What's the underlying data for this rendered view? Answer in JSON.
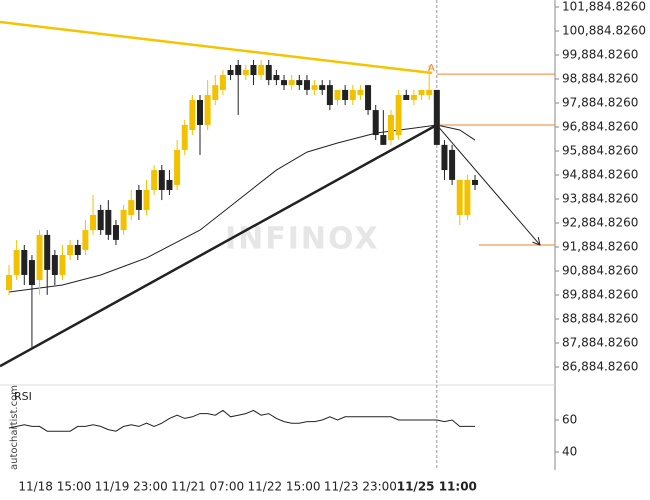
{
  "chart_data": [
    {
      "type": "candlestick",
      "categories": [
        null,
        null,
        null,
        null,
        null,
        null,
        "11/18 15:00",
        null,
        null,
        null,
        null,
        null,
        null,
        null,
        null,
        null,
        "11/19 23:00",
        null,
        null,
        null,
        null,
        null,
        null,
        null,
        null,
        null,
        "11/21 07:00",
        null,
        null,
        null,
        null,
        null,
        null,
        null,
        null,
        null,
        "11/22 15:00",
        null,
        null,
        null,
        null,
        null,
        null,
        null,
        null,
        null,
        "11/23 23:00",
        null,
        null,
        null,
        null,
        null,
        null,
        null,
        null,
        null,
        "11/25 11:00",
        null,
        null,
        null,
        null,
        null
      ],
      "open": [
        90090,
        90720,
        91760,
        91340,
        90510,
        92390,
        91550,
        90720,
        91550,
        91970,
        91760,
        92590,
        93430,
        93430,
        92800,
        92590,
        93220,
        94260,
        93430,
        94260,
        95090,
        94680,
        94470,
        95930,
        96760,
        98010,
        96970,
        98010,
        98430,
        99260,
        99470,
        99050,
        99470,
        99050,
        99470,
        99050,
        98840,
        98630,
        98840,
        98840,
        98430,
        98630,
        98630,
        98010,
        98430,
        98010,
        98220,
        98630,
        97590,
        96550,
        96340,
        96550,
        98220,
        98010,
        98220,
        98220,
        98430,
        96140,
        95930,
        93220,
        93220,
        94680
      ],
      "high": [
        91140,
        92180,
        91970,
        91550,
        92590,
        92590,
        91760,
        91970,
        92180,
        92180,
        93010,
        94050,
        93640,
        93840,
        93010,
        93640,
        94260,
        94470,
        94680,
        95300,
        95300,
        95090,
        96340,
        97180,
        98220,
        98220,
        98840,
        99050,
        99260,
        99470,
        99680,
        99470,
        99680,
        99680,
        99680,
        99260,
        99050,
        99050,
        99050,
        99050,
        98840,
        98840,
        98840,
        98430,
        98630,
        98630,
        98630,
        98630,
        97800,
        97590,
        97590,
        98430,
        98430,
        98430,
        98430,
        99470,
        98430,
        96340,
        96140,
        94680,
        94890,
        94890
      ],
      "low": [
        89890,
        90510,
        90300,
        87680,
        89890,
        89890,
        90300,
        90510,
        91340,
        91340,
        91550,
        92390,
        92390,
        92180,
        91970,
        92390,
        93010,
        93010,
        93220,
        94050,
        93840,
        94050,
        94260,
        95720,
        96550,
        95720,
        96760,
        97800,
        98220,
        98840,
        97390,
        98840,
        98630,
        98840,
        98630,
        98630,
        98430,
        98430,
        98430,
        98220,
        98220,
        98220,
        97590,
        97800,
        97800,
        97800,
        98010,
        97390,
        96340,
        96140,
        96140,
        96340,
        98010,
        97800,
        98010,
        98010,
        96140,
        94680,
        94470,
        92800,
        93010,
        94260
      ],
      "close": [
        90720,
        91760,
        90720,
        90300,
        92390,
        90930,
        90720,
        91550,
        91970,
        91550,
        92590,
        93220,
        92590,
        92390,
        92180,
        93430,
        93840,
        93430,
        94260,
        95090,
        94260,
        94260,
        95930,
        96970,
        98010,
        96970,
        98220,
        98630,
        99050,
        99050,
        99050,
        99260,
        99050,
        99470,
        98840,
        98840,
        98630,
        98840,
        98630,
        98430,
        98630,
        98430,
        97800,
        98430,
        98010,
        98430,
        98430,
        97590,
        96550,
        96140,
        97390,
        98220,
        98010,
        98220,
        98430,
        98430,
        96140,
        95090,
        94680,
        94680,
        94680,
        94470
      ],
      "up_color": "#f2c200",
      "down_color": "#222222",
      "xlim": [
        -1.18,
        71.47
      ],
      "ylim": [
        86135,
        102177
      ],
      "yticks": [
        {
          "value": 101884.826,
          "label": "101,884.8260"
        },
        {
          "value": 100884.826,
          "label": "100,884.8260"
        },
        {
          "value": 99884.826,
          "label": "99,884.8260"
        },
        {
          "value": 98884.826,
          "label": "98,884.8260"
        },
        {
          "value": 97884.826,
          "label": "97,884.8260"
        },
        {
          "value": 96884.826,
          "label": "96,884.8260"
        },
        {
          "value": 95884.826,
          "label": "95,884.8260"
        },
        {
          "value": 94884.826,
          "label": "94,884.8260"
        },
        {
          "value": 93884.826,
          "label": "93,884.8260"
        },
        {
          "value": 92884.826,
          "label": "92,884.8260"
        },
        {
          "value": 91884.826,
          "label": "91,884.8260"
        },
        {
          "value": 90884.826,
          "label": "90,884.8260"
        },
        {
          "value": 89884.826,
          "label": "89,884.8260"
        },
        {
          "value": 88884.826,
          "label": "88,884.8260"
        },
        {
          "value": 87884.826,
          "label": "87,884.8260"
        },
        {
          "value": 86884.826,
          "label": "86,884.8260"
        }
      ],
      "overlays": [
        {
          "color": "#222222",
          "x": [
            0,
            7,
            12,
            18,
            25,
            30,
            35,
            39,
            43,
            48,
            53,
            56,
            59,
            61
          ],
          "values": [
            90010,
            90300,
            90720,
            91430,
            92590,
            93840,
            95090,
            95840,
            96220,
            96630,
            96840,
            96970,
            96760,
            96340
          ]
        }
      ],
      "trend_lines": [
        {
          "color": "#f5c400",
          "x": [
            -1.18,
            55.4
          ],
          "values": [
            101260,
            99135
          ]
        },
        {
          "color": "#222222",
          "x": [
            -1.18,
            56
          ],
          "values": [
            86920,
            96970
          ]
        }
      ],
      "forecast": {
        "color": "#222222",
        "x": [
          56,
          69.5
        ],
        "values": [
          96970,
          91970
        ]
      },
      "level_color": "#f08030",
      "levels": [
        {
          "value": 99090,
          "from": 56
        },
        {
          "value": 96970,
          "from": 56
        },
        {
          "value": 91970,
          "from": 61.5
        }
      ],
      "marker": {
        "label": "A",
        "x": 55.3,
        "value": 99350
      },
      "current": 56,
      "watermark": "INFINOX",
      "source": "autochartist.com"
    },
    {
      "type": "line",
      "title": "RSI",
      "color": "#222222",
      "values": [
        55,
        56,
        57,
        56,
        56,
        53,
        53,
        53,
        53,
        56,
        56,
        57,
        56,
        54,
        53,
        56,
        57,
        56,
        58,
        56,
        58,
        61,
        63,
        61,
        62,
        64,
        64,
        63,
        66,
        62,
        63,
        64,
        66,
        63,
        64,
        61,
        59,
        58,
        58,
        59,
        59,
        60,
        62,
        60,
        62,
        62,
        62,
        62,
        62,
        62,
        62,
        60,
        60,
        60,
        60,
        60,
        60,
        59,
        60,
        56,
        56,
        56
      ],
      "ylim": [
        28.75,
        77.5
      ],
      "yticks": [
        60,
        40
      ]
    }
  ]
}
